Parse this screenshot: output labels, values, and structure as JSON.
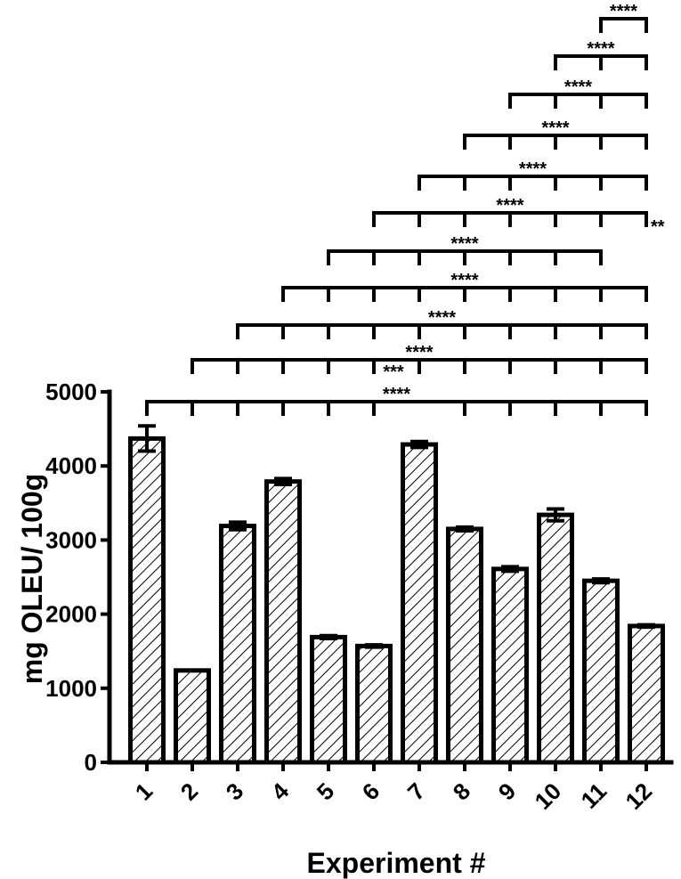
{
  "chart_data": {
    "type": "bar",
    "categories": [
      "1",
      "2",
      "3",
      "4",
      "5",
      "6",
      "7",
      "8",
      "9",
      "10",
      "11",
      "12"
    ],
    "values": [
      4370,
      1240,
      3190,
      3790,
      1690,
      1570,
      4290,
      3150,
      2610,
      3340,
      2450,
      1840
    ],
    "errors": [
      170,
      0,
      50,
      40,
      20,
      15,
      40,
      25,
      30,
      80,
      25,
      15
    ],
    "xlabel": "Experiment #",
    "ylabel": "mg OLEU/ 100g",
    "ylim": [
      0,
      5000
    ],
    "yticks": [
      0,
      1000,
      2000,
      3000,
      4000,
      5000
    ],
    "bar_pattern": "diagonal-hatch",
    "significance": [
      {
        "from": "1",
        "to": [
          "2",
          "3",
          "4",
          "5",
          "6",
          "8",
          "9",
          "10",
          "11",
          "12"
        ],
        "label": "****"
      },
      {
        "from": "2",
        "to": [
          "3",
          "4",
          "5",
          "6",
          "7",
          "8",
          "9",
          "10",
          "11",
          "12"
        ],
        "label": "****"
      },
      {
        "from": "3",
        "to": [
          "4",
          "5",
          "6",
          "7",
          "8",
          "9",
          "10",
          "11",
          "12"
        ],
        "label": "****"
      },
      {
        "from": "4",
        "to": [
          "5",
          "6",
          "7",
          "8",
          "9",
          "10",
          "11",
          "12"
        ],
        "label": "****"
      },
      {
        "from": "5",
        "to": [
          "6",
          "7",
          "8",
          "9",
          "10",
          "11"
        ],
        "label": "****"
      },
      {
        "from": "6",
        "to": [
          "7",
          "8",
          "9",
          "10",
          "11",
          "12"
        ],
        "label": "****"
      },
      {
        "from": "7",
        "to": [
          "8",
          "9",
          "10",
          "11",
          "12"
        ],
        "label": "****"
      },
      {
        "from": "8",
        "to": [
          "9",
          "10",
          "11",
          "12"
        ],
        "label": "****"
      },
      {
        "from": "9",
        "to": [
          "10",
          "11",
          "12"
        ],
        "label": "****"
      },
      {
        "from": "10",
        "to": [
          "11",
          "12"
        ],
        "label": "****"
      },
      {
        "from": "11",
        "to": [
          "12"
        ],
        "label": "****"
      }
    ],
    "extra_annotations": [
      {
        "label": "***",
        "near": "6",
        "level_of": "1"
      },
      {
        "label": "**",
        "near": "12",
        "level_of": "6"
      }
    ]
  }
}
